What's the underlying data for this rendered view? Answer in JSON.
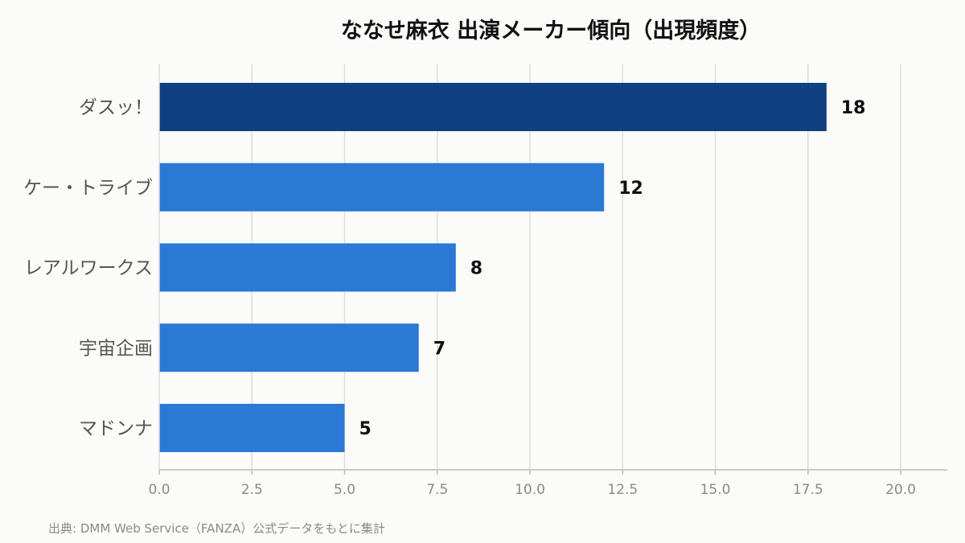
{
  "chart_data": {
    "type": "bar",
    "orientation": "horizontal",
    "title": "ななせ麻衣 出演メーカー傾向（出現頻度）",
    "categories": [
      "ダスッ！",
      "ケー・トライブ",
      "レアルワークス",
      "宇宙企画",
      "マドンナ"
    ],
    "values": [
      18,
      12,
      8,
      7,
      5
    ],
    "xlim": [
      0,
      21
    ],
    "x_ticks": [
      0,
      2.5,
      5,
      7.5,
      10,
      12.5,
      15,
      17.5,
      20
    ],
    "x_tick_labels": [
      "0.0",
      "2.5",
      "5.0",
      "7.5",
      "10.0",
      "12.5",
      "15.0",
      "17.5",
      "20.0"
    ],
    "xlabel": "",
    "ylabel": "",
    "grid": true,
    "legend": false,
    "colors": {
      "highlight": "#0f4080",
      "bar": "#2b78d5",
      "grid": "#dddddd",
      "axis": "#bbbbbb"
    }
  },
  "source_note": "出典: DMM Web Service（FANZA）公式データをもとに集計"
}
